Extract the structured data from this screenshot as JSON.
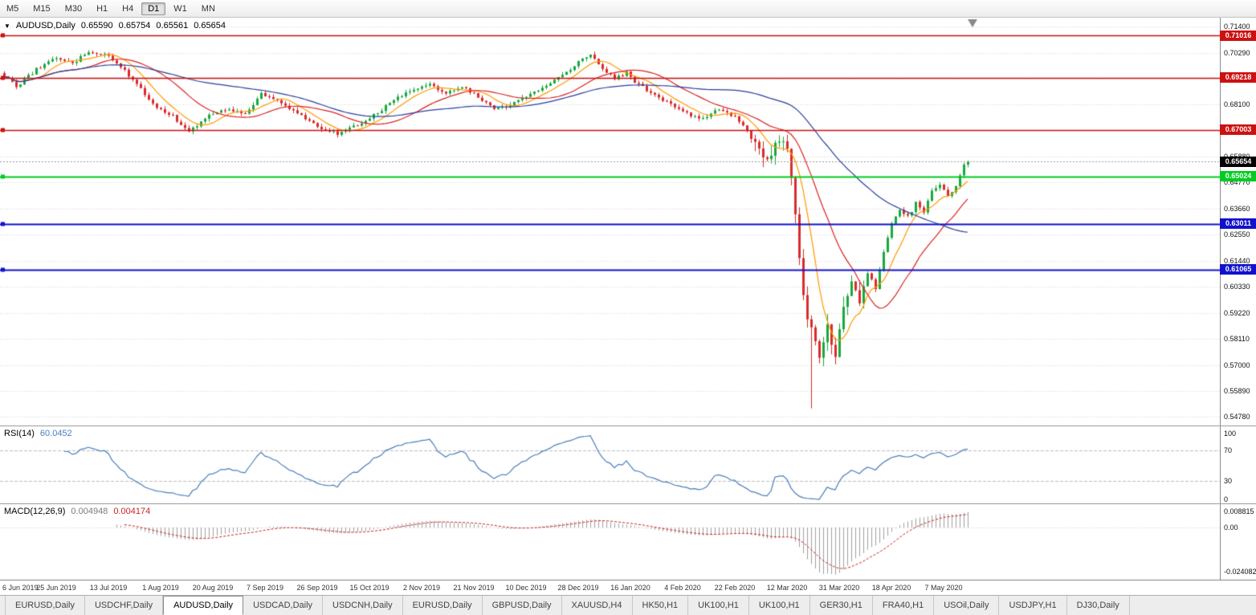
{
  "toolbar": {
    "timeframes": [
      "M5",
      "M15",
      "M30",
      "H1",
      "H4",
      "D1",
      "W1",
      "MN"
    ],
    "active": "D1"
  },
  "chart_header": {
    "symbol": "AUDUSD,Daily",
    "open": "0.65590",
    "high": "0.65754",
    "low": "0.65561",
    "close": "0.65654"
  },
  "rsi_header": {
    "label": "RSI(14)",
    "value": "60.0452"
  },
  "macd_header": {
    "label": "MACD(12,26,9)",
    "value1": "0.004948",
    "value2": "0.004174"
  },
  "bottom_tabs": {
    "active_index": 2,
    "items": [
      "EURUSD,Daily",
      "USDCHF,Daily",
      "AUDUSD,Daily",
      "USDCAD,Daily",
      "USDCNH,Daily",
      "EURUSD,Daily",
      "GBPUSD,Daily",
      "XAUUSD,H4",
      "HK50,H1",
      "UK100,H1",
      "UK100,H1",
      "GER30,H1",
      "FRA40,H1",
      "USOil,Daily",
      "USDJPY,H1",
      "DJ30,Daily"
    ]
  },
  "chart_data": {
    "type": "candlestick",
    "symbol": "AUDUSD",
    "timeframe": "Daily",
    "ohlc_current": {
      "open": 0.6559,
      "high": 0.65754,
      "low": 0.65561,
      "close": 0.65654
    },
    "price_range": {
      "min": 0.5442,
      "max": 0.7178
    },
    "y_axis_ticks": [
      "0.71400",
      "0.70290",
      "0.69180",
      "0.68100",
      "0.66990",
      "0.65880",
      "0.64770",
      "0.63660",
      "0.62550",
      "0.61440",
      "0.60330",
      "0.59220",
      "0.58110",
      "0.57000",
      "0.55890",
      "0.54780"
    ],
    "x_axis_labels": [
      "6 Jun 2019",
      "25 Jun 2019",
      "13 Jul 2019",
      "1 Aug 2019",
      "20 Aug 2019",
      "7 Sep 2019",
      "26 Sep 2019",
      "15 Oct 2019",
      "2 Nov 2019",
      "21 Nov 2019",
      "10 Dec 2019",
      "28 Dec 2019",
      "16 Jan 2020",
      "4 Feb 2020",
      "22 Feb 2020",
      "12 Mar 2020",
      "31 Mar 2020",
      "18 Apr 2020",
      "7 May 2020"
    ],
    "candles_per_label": 13,
    "candle_count": 241,
    "horizontal_lines": [
      {
        "price": 0.71016,
        "label": "0.71016",
        "color": "#cc1111",
        "width": 1.5
      },
      {
        "price": 0.69218,
        "label": "0.69218",
        "color": "#cc1111",
        "width": 1.5
      },
      {
        "price": 0.67003,
        "label": "0.67003",
        "color": "#cc1111",
        "width": 1.5
      },
      {
        "price": 0.65024,
        "label": "0.65024",
        "color": "#00cc22",
        "width": 2
      },
      {
        "price": 0.63011,
        "label": "0.63011",
        "color": "#1111cc",
        "width": 2
      },
      {
        "price": 0.61065,
        "label": "0.61065",
        "color": "#1111cc",
        "width": 2
      }
    ],
    "current_price": {
      "value": 0.65654,
      "label": "0.65654",
      "color": "#000000"
    },
    "candle_colors": {
      "bull": "#17a93c",
      "bear": "#d92b2b"
    },
    "moving_averages": [
      {
        "period": 8,
        "color": "#ff9900"
      },
      {
        "period": 21,
        "color": "#dd2222"
      },
      {
        "period": 55,
        "color": "#2b3f9e"
      }
    ],
    "price_path_anchors": [
      [
        0,
        0.693
      ],
      [
        3,
        0.6885
      ],
      [
        8,
        0.696
      ],
      [
        13,
        0.701
      ],
      [
        17,
        0.6985
      ],
      [
        21,
        0.7035
      ],
      [
        26,
        0.7015
      ],
      [
        30,
        0.695
      ],
      [
        34,
        0.687
      ],
      [
        38,
        0.6795
      ],
      [
        42,
        0.676
      ],
      [
        46,
        0.669
      ],
      [
        50,
        0.6755
      ],
      [
        55,
        0.679
      ],
      [
        60,
        0.6765
      ],
      [
        64,
        0.6855
      ],
      [
        68,
        0.6825
      ],
      [
        73,
        0.677
      ],
      [
        78,
        0.6715
      ],
      [
        83,
        0.6685
      ],
      [
        87,
        0.6715
      ],
      [
        92,
        0.676
      ],
      [
        97,
        0.683
      ],
      [
        102,
        0.687
      ],
      [
        106,
        0.689
      ],
      [
        110,
        0.6855
      ],
      [
        114,
        0.688
      ],
      [
        118,
        0.684
      ],
      [
        122,
        0.679
      ],
      [
        126,
        0.681
      ],
      [
        130,
        0.6845
      ],
      [
        134,
        0.688
      ],
      [
        139,
        0.693
      ],
      [
        143,
        0.699
      ],
      [
        146,
        0.7025
      ],
      [
        149,
        0.696
      ],
      [
        152,
        0.692
      ],
      [
        155,
        0.6945
      ],
      [
        158,
        0.689
      ],
      [
        162,
        0.685
      ],
      [
        166,
        0.681
      ],
      [
        170,
        0.677
      ],
      [
        174,
        0.675
      ],
      [
        178,
        0.6785
      ],
      [
        182,
        0.676
      ],
      [
        185,
        0.67
      ],
      [
        188,
        0.662
      ],
      [
        190,
        0.6575
      ],
      [
        193,
        0.665
      ],
      [
        195,
        0.663
      ],
      [
        196,
        0.65
      ],
      [
        197,
        0.634
      ],
      [
        198,
        0.616
      ],
      [
        199,
        0.599
      ],
      [
        200,
        0.59
      ],
      [
        201,
        0.586
      ],
      [
        202,
        0.58
      ],
      [
        203,
        0.573
      ],
      [
        204,
        0.58
      ],
      [
        205,
        0.587
      ],
      [
        206,
        0.579
      ],
      [
        207,
        0.572
      ],
      [
        209,
        0.594
      ],
      [
        211,
        0.606
      ],
      [
        213,
        0.5985
      ],
      [
        215,
        0.609
      ],
      [
        217,
        0.603
      ],
      [
        219,
        0.618
      ],
      [
        221,
        0.63
      ],
      [
        223,
        0.6365
      ],
      [
        225,
        0.633
      ],
      [
        227,
        0.639
      ],
      [
        229,
        0.635
      ],
      [
        231,
        0.644
      ],
      [
        233,
        0.6465
      ],
      [
        235,
        0.642
      ],
      [
        237,
        0.646
      ],
      [
        239,
        0.655
      ],
      [
        240,
        0.65654
      ]
    ],
    "spike_lows": {
      "201": 0.5515
    },
    "rsi": {
      "period": 14,
      "current": 60.0452,
      "levels": [
        70,
        30
      ],
      "axis_ticks": [
        100,
        70,
        30,
        0
      ],
      "color": "#4a7ebb"
    },
    "macd": {
      "fast": 12,
      "slow": 26,
      "signal": 9,
      "current_macd": 0.004948,
      "current_signal": 0.004174,
      "axis_ticks": [
        "0.008815",
        "0.00",
        "-0.024082"
      ],
      "histogram_color": "#a0a0a0",
      "signal_color": "#cc2222"
    }
  }
}
